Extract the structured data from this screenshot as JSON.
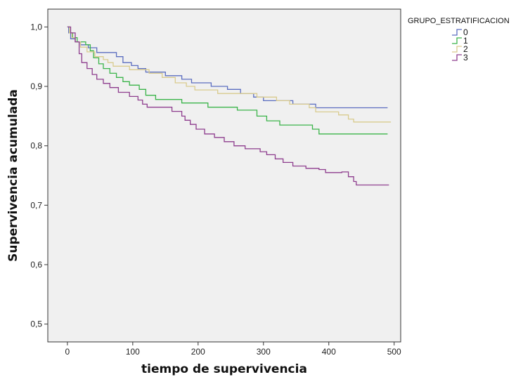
{
  "chart_data": {
    "type": "line",
    "step": true,
    "title": "",
    "xlabel": "tiempo de supervivencia",
    "ylabel": "Supervivencia acumulada",
    "xlim": [
      -30,
      510
    ],
    "ylim": [
      0.47,
      1.03
    ],
    "xticks": [
      0,
      100,
      200,
      300,
      400,
      500
    ],
    "xtick_labels": [
      "0",
      "100",
      "200",
      "300",
      "400",
      "500"
    ],
    "yticks": [
      0.5,
      0.6,
      0.7,
      0.8,
      0.9,
      1.0
    ],
    "ytick_labels": [
      "0,5",
      "0,6",
      "0,7",
      "0,8",
      "0,9",
      "1,0"
    ],
    "grid": false,
    "background": "#f0f0f0",
    "legend": {
      "title": "GRUPO_ESTRATIFICACION",
      "position": "top-right"
    },
    "series": [
      {
        "name": "0",
        "color": "#5b6dc0",
        "points": [
          [
            0,
            1.0
          ],
          [
            2,
            0.99
          ],
          [
            5,
            0.98
          ],
          [
            12,
            0.975
          ],
          [
            20,
            0.97
          ],
          [
            32,
            0.965
          ],
          [
            45,
            0.957
          ],
          [
            75,
            0.95
          ],
          [
            85,
            0.94
          ],
          [
            98,
            0.935
          ],
          [
            108,
            0.93
          ],
          [
            120,
            0.924
          ],
          [
            150,
            0.918
          ],
          [
            175,
            0.912
          ],
          [
            190,
            0.906
          ],
          [
            220,
            0.9
          ],
          [
            245,
            0.895
          ],
          [
            265,
            0.888
          ],
          [
            285,
            0.882
          ],
          [
            300,
            0.876
          ],
          [
            345,
            0.87
          ],
          [
            380,
            0.864
          ],
          [
            490,
            0.864
          ]
        ]
      },
      {
        "name": "1",
        "color": "#3bb44a",
        "points": [
          [
            0,
            1.0
          ],
          [
            3,
            0.99
          ],
          [
            8,
            0.982
          ],
          [
            15,
            0.975
          ],
          [
            28,
            0.97
          ],
          [
            35,
            0.96
          ],
          [
            40,
            0.948
          ],
          [
            48,
            0.938
          ],
          [
            55,
            0.93
          ],
          [
            65,
            0.922
          ],
          [
            75,
            0.915
          ],
          [
            85,
            0.908
          ],
          [
            95,
            0.902
          ],
          [
            110,
            0.895
          ],
          [
            120,
            0.885
          ],
          [
            135,
            0.878
          ],
          [
            175,
            0.872
          ],
          [
            215,
            0.865
          ],
          [
            260,
            0.86
          ],
          [
            290,
            0.85
          ],
          [
            305,
            0.842
          ],
          [
            325,
            0.835
          ],
          [
            375,
            0.828
          ],
          [
            385,
            0.82
          ],
          [
            490,
            0.82
          ]
        ]
      },
      {
        "name": "2",
        "color": "#d9cb8e",
        "points": [
          [
            0,
            1.0
          ],
          [
            3,
            0.99
          ],
          [
            7,
            0.982
          ],
          [
            12,
            0.975
          ],
          [
            20,
            0.966
          ],
          [
            30,
            0.958
          ],
          [
            42,
            0.95
          ],
          [
            55,
            0.945
          ],
          [
            62,
            0.94
          ],
          [
            70,
            0.934
          ],
          [
            95,
            0.928
          ],
          [
            125,
            0.922
          ],
          [
            145,
            0.915
          ],
          [
            165,
            0.906
          ],
          [
            182,
            0.9
          ],
          [
            195,
            0.894
          ],
          [
            230,
            0.888
          ],
          [
            290,
            0.882
          ],
          [
            320,
            0.876
          ],
          [
            340,
            0.87
          ],
          [
            370,
            0.864
          ],
          [
            380,
            0.857
          ],
          [
            415,
            0.852
          ],
          [
            430,
            0.845
          ],
          [
            438,
            0.84
          ],
          [
            495,
            0.84
          ]
        ]
      },
      {
        "name": "3",
        "color": "#8e3d8e",
        "points": [
          [
            0,
            1.0
          ],
          [
            5,
            0.99
          ],
          [
            12,
            0.975
          ],
          [
            18,
            0.955
          ],
          [
            22,
            0.94
          ],
          [
            30,
            0.93
          ],
          [
            38,
            0.92
          ],
          [
            45,
            0.912
          ],
          [
            55,
            0.905
          ],
          [
            65,
            0.898
          ],
          [
            78,
            0.89
          ],
          [
            95,
            0.883
          ],
          [
            108,
            0.877
          ],
          [
            115,
            0.87
          ],
          [
            122,
            0.865
          ],
          [
            160,
            0.858
          ],
          [
            175,
            0.85
          ],
          [
            180,
            0.843
          ],
          [
            188,
            0.836
          ],
          [
            197,
            0.828
          ],
          [
            210,
            0.82
          ],
          [
            225,
            0.814
          ],
          [
            240,
            0.807
          ],
          [
            255,
            0.8
          ],
          [
            272,
            0.795
          ],
          [
            295,
            0.79
          ],
          [
            305,
            0.785
          ],
          [
            318,
            0.778
          ],
          [
            330,
            0.772
          ],
          [
            345,
            0.766
          ],
          [
            365,
            0.762
          ],
          [
            385,
            0.76
          ],
          [
            395,
            0.755
          ],
          [
            420,
            0.756
          ],
          [
            430,
            0.748
          ],
          [
            438,
            0.74
          ],
          [
            442,
            0.734
          ],
          [
            492,
            0.734
          ]
        ]
      }
    ]
  }
}
